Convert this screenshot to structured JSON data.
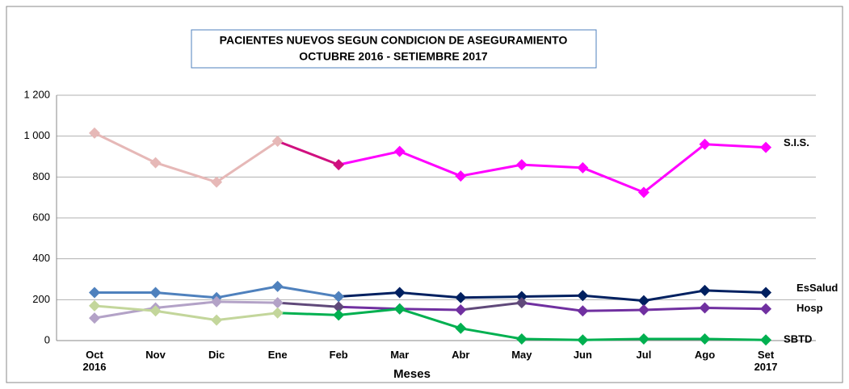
{
  "chart_data": {
    "type": "line",
    "title": [
      "PACIENTES NUEVOS SEGUN CONDICION DE ASEGURAMIENTO",
      "OCTUBRE  2016  - SETIEMBRE 2017"
    ],
    "x_label": "Meses",
    "categories": [
      "Oct\n2016",
      "Nov",
      "Dic",
      "Ene",
      "Feb",
      "Mar",
      "Abr",
      "May",
      "Jun",
      "Jul",
      "Ago",
      "Set\n2017"
    ],
    "ylim": [
      0,
      1200
    ],
    "yticks": [
      0,
      200,
      400,
      600,
      800,
      {
        "value": 1000,
        "label": "1 000"
      },
      {
        "value": 1200,
        "label": "1 200"
      }
    ],
    "grid": true,
    "series": [
      {
        "name": "S.I.S.",
        "colors": [
          "#e6b8b7",
          "#e6b8b7",
          "#e6b8b7",
          "#e6b8b7",
          "#d0107f",
          "#ff00ff",
          "#ff00ff",
          "#ff00ff",
          "#ff00ff",
          "#ff00ff",
          "#ff00ff",
          "#ff00ff"
        ],
        "values": [
          1015,
          870,
          775,
          975,
          860,
          925,
          805,
          860,
          845,
          725,
          960,
          945
        ]
      },
      {
        "name": "EsSalud",
        "colors": [
          "#4f81bd",
          "#4f81bd",
          "#4f81bd",
          "#4f81bd",
          "#4f81bd",
          "#002060",
          "#002060",
          "#002060",
          "#002060",
          "#002060",
          "#002060",
          "#002060"
        ],
        "values": [
          235,
          235,
          210,
          265,
          215,
          235,
          210,
          215,
          220,
          195,
          245,
          235
        ]
      },
      {
        "name": "Hosp",
        "colors": [
          "#b3a2c7",
          "#b3a2c7",
          "#b3a2c7",
          "#b3a2c7",
          "#60497a",
          "#7030a0",
          "#7030a0",
          "#60497a",
          "#7030a0",
          "#7030a0",
          "#7030a0",
          "#7030a0"
        ],
        "values": [
          110,
          160,
          190,
          185,
          165,
          155,
          150,
          185,
          145,
          150,
          160,
          155
        ]
      },
      {
        "name": "SBTD",
        "colors": [
          "#c3d69b",
          "#c3d69b",
          "#c3d69b",
          "#c3d69b",
          "#00b050",
          "#00b050",
          "#00b050",
          "#00b050",
          "#00b050",
          "#00b050",
          "#00b050",
          "#00b050"
        ],
        "values": [
          170,
          145,
          100,
          135,
          125,
          155,
          60,
          8,
          3,
          8,
          8,
          3
        ]
      }
    ]
  }
}
